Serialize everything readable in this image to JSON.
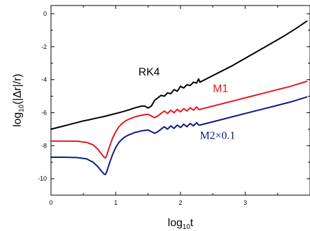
{
  "chart_data": {
    "type": "line",
    "xlabel": {
      "main": "log",
      "sub": "10",
      "tail": "t"
    },
    "ylabel": {
      "main": "log",
      "sub": "10",
      "tail": "(|Δr|/r)"
    },
    "xlim": [
      0,
      4
    ],
    "ylim": [
      -11,
      0.5
    ],
    "xticks": [
      0,
      1,
      2,
      3
    ],
    "xtick_labels": [
      "0",
      "1",
      "2",
      "3"
    ],
    "yticks": [
      0,
      -2,
      -4,
      -6,
      -8,
      -10
    ],
    "ytick_labels": [
      "0",
      "-2",
      "-4",
      "-6",
      "-8",
      "-10"
    ],
    "grid": false,
    "series": [
      {
        "name": "RK4",
        "color": "#000000",
        "x": [
          0,
          0.1,
          0.2,
          0.3,
          0.4,
          0.5,
          0.6,
          0.7,
          0.8,
          0.9,
          1.0,
          1.1,
          1.2,
          1.3,
          1.4,
          1.45,
          1.5,
          1.55,
          1.6,
          1.65,
          1.7,
          1.75,
          1.8,
          1.85,
          1.9,
          1.95,
          2.0,
          2.05,
          2.1,
          2.15,
          2.2,
          2.25,
          2.28,
          2.3,
          2.4,
          2.6,
          2.8,
          3.0,
          3.2,
          3.4,
          3.6,
          3.8,
          3.95
        ],
        "y": [
          -7.0,
          -6.9,
          -6.8,
          -6.7,
          -6.6,
          -6.5,
          -6.42,
          -6.33,
          -6.25,
          -6.15,
          -6.05,
          -5.95,
          -5.83,
          -5.7,
          -5.6,
          -5.6,
          -5.72,
          -5.6,
          -5.25,
          -5.1,
          -4.95,
          -5.0,
          -4.8,
          -4.85,
          -4.6,
          -4.7,
          -4.4,
          -4.5,
          -4.3,
          -4.35,
          -4.15,
          -4.2,
          -3.95,
          -4.15,
          -3.95,
          -3.55,
          -3.15,
          -2.7,
          -2.25,
          -1.8,
          -1.35,
          -0.85,
          -0.45
        ]
      },
      {
        "name": "M1",
        "color": "#e8141e",
        "x": [
          0,
          0.2,
          0.4,
          0.55,
          0.65,
          0.72,
          0.78,
          0.82,
          0.84,
          0.86,
          0.9,
          0.95,
          1.0,
          1.05,
          1.1,
          1.15,
          1.2,
          1.3,
          1.4,
          1.5,
          1.55,
          1.6,
          1.65,
          1.7,
          1.75,
          1.8,
          1.85,
          1.9,
          1.95,
          2.0,
          2.05,
          2.1,
          2.15,
          2.2,
          2.25,
          2.28,
          2.3,
          2.5,
          2.8,
          3.1,
          3.4,
          3.7,
          3.95
        ],
        "y": [
          -7.72,
          -7.72,
          -7.73,
          -7.8,
          -7.95,
          -8.2,
          -8.5,
          -8.7,
          -8.75,
          -8.6,
          -8.1,
          -7.55,
          -7.15,
          -6.85,
          -6.65,
          -6.5,
          -6.4,
          -6.25,
          -6.15,
          -6.1,
          -6.2,
          -6.3,
          -6.2,
          -6.05,
          -5.9,
          -6.05,
          -5.85,
          -6.0,
          -5.8,
          -5.95,
          -5.75,
          -5.9,
          -5.7,
          -5.85,
          -5.65,
          -5.8,
          -5.8,
          -5.6,
          -5.3,
          -5.0,
          -4.7,
          -4.4,
          -4.1
        ]
      },
      {
        "name": "M2×0.1",
        "color": "#0a1a80",
        "x": [
          0,
          0.2,
          0.4,
          0.55,
          0.65,
          0.72,
          0.78,
          0.82,
          0.84,
          0.86,
          0.9,
          0.95,
          1.0,
          1.05,
          1.1,
          1.15,
          1.2,
          1.3,
          1.4,
          1.5,
          1.55,
          1.6,
          1.65,
          1.7,
          1.75,
          1.8,
          1.85,
          1.9,
          1.95,
          2.0,
          2.05,
          2.1,
          2.15,
          2.2,
          2.25,
          2.28,
          2.3,
          2.5,
          2.8,
          3.1,
          3.4,
          3.7,
          3.95
        ],
        "y": [
          -8.7,
          -8.7,
          -8.72,
          -8.8,
          -9.0,
          -9.25,
          -9.55,
          -9.72,
          -9.75,
          -9.6,
          -9.1,
          -8.55,
          -8.1,
          -7.8,
          -7.6,
          -7.45,
          -7.35,
          -7.2,
          -7.1,
          -7.05,
          -7.15,
          -7.25,
          -7.15,
          -7.0,
          -6.85,
          -7.0,
          -6.8,
          -6.95,
          -6.75,
          -6.9,
          -6.7,
          -6.85,
          -6.65,
          -6.8,
          -6.6,
          -6.75,
          -6.75,
          -6.55,
          -6.25,
          -5.95,
          -5.65,
          -5.35,
          -5.05
        ]
      }
    ],
    "annotations": [
      {
        "text": "RK4",
        "x": 1.35,
        "y": -3.75,
        "color": "#000000",
        "font": "sans"
      },
      {
        "text": "M1",
        "x": 2.5,
        "y": -4.75,
        "color": "#e8141e",
        "font": "sans"
      },
      {
        "text": "M2×0.1",
        "x": 2.3,
        "y": -7.6,
        "color": "#0a1a80",
        "font": "serif"
      }
    ]
  }
}
